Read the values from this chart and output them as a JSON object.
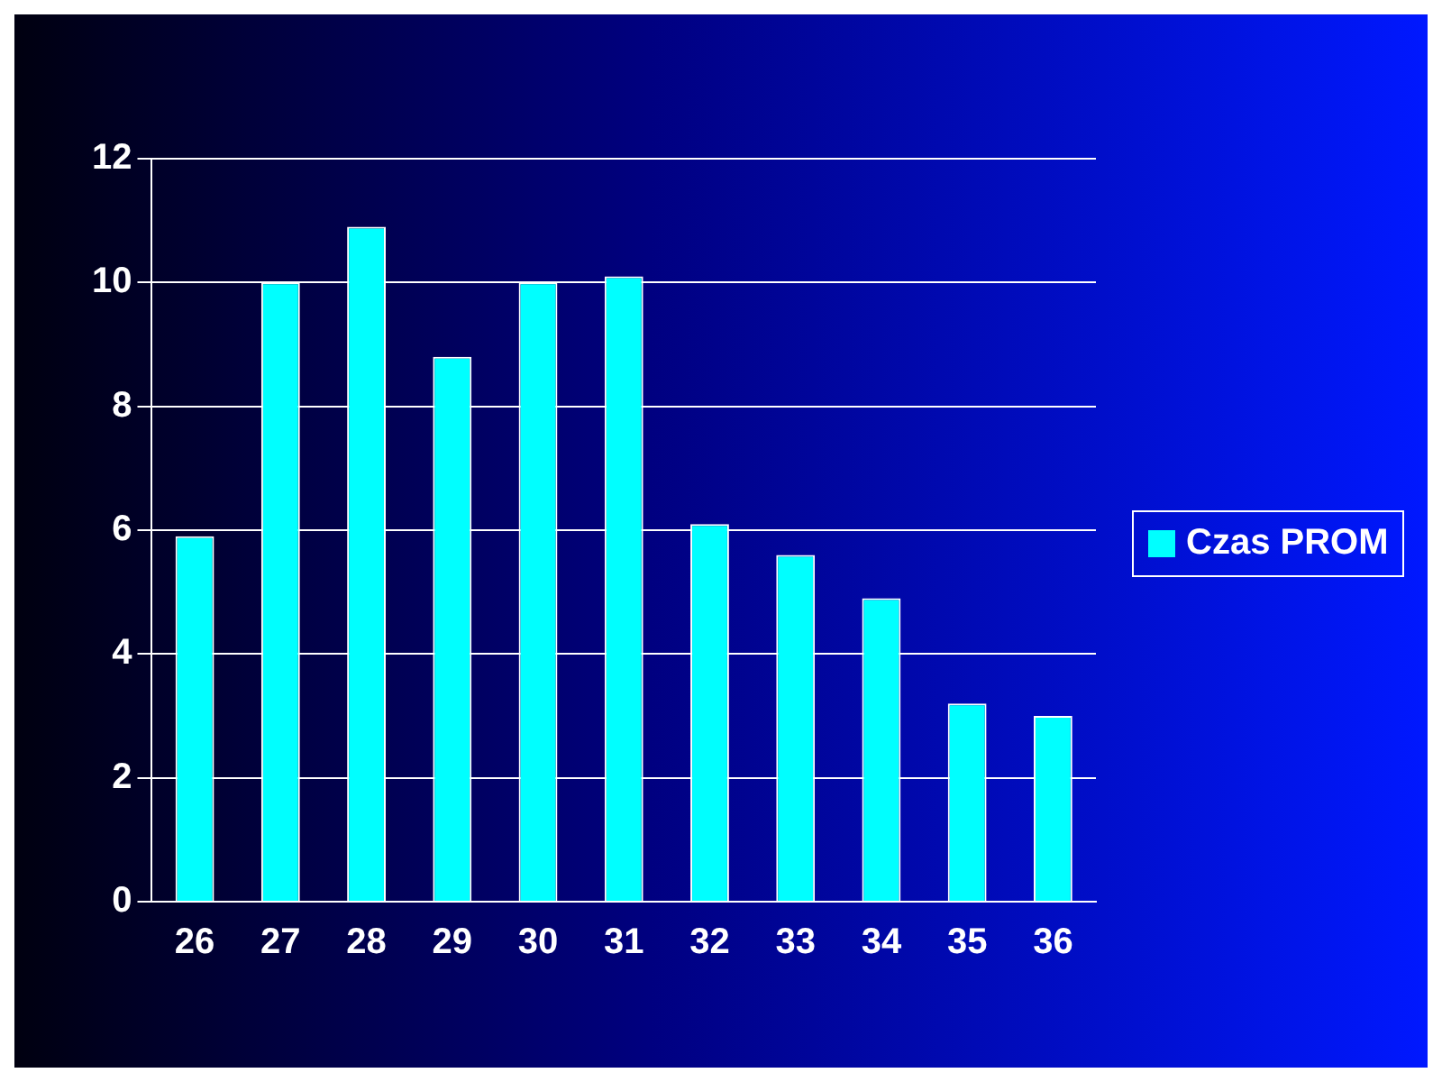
{
  "chart_data": {
    "type": "bar",
    "categories": [
      "26",
      "27",
      "28",
      "29",
      "30",
      "31",
      "32",
      "33",
      "34",
      "35",
      "36"
    ],
    "series": [
      {
        "name": "Czas PROM",
        "color": "#00ffff",
        "values": [
          5.9,
          10.0,
          10.9,
          8.8,
          10.0,
          10.1,
          6.1,
          5.6,
          4.9,
          3.2,
          3.0
        ]
      }
    ],
    "ylim": [
      0,
      12
    ],
    "yticks": [
      0,
      2,
      4,
      6,
      8,
      10,
      12
    ],
    "grid": "y",
    "legend": "right"
  }
}
